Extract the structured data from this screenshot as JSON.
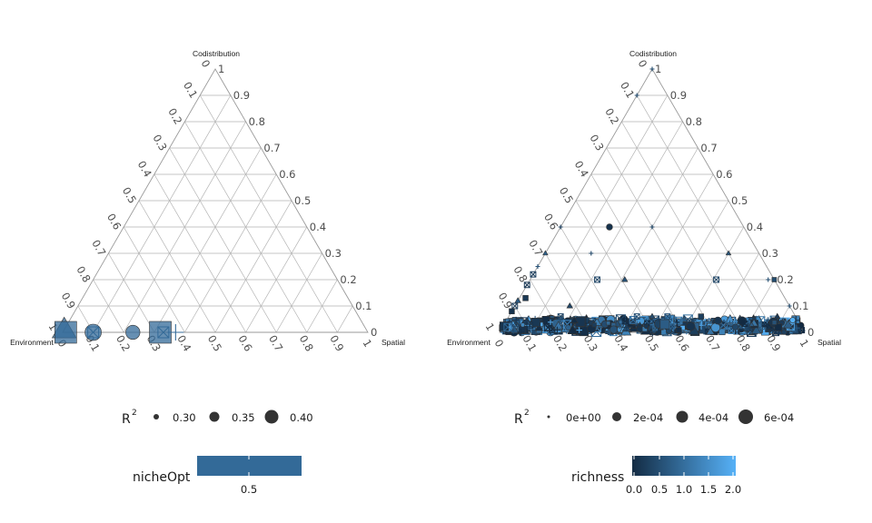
{
  "colors": {
    "grid": "#b3b3b3",
    "low": "#132b43",
    "high": "#56b1f7",
    "nicheOpt_fill": "#336a98",
    "point_stroke": "#333333"
  },
  "chart_data": [
    {
      "type": "scatter",
      "subtype": "ternary",
      "vertex_labels": {
        "top": "Codistribution",
        "left": "Environment",
        "right": "Spatial"
      },
      "ticks": [
        "0",
        "0.1",
        "0.2",
        "0.3",
        "0.4",
        "0.5",
        "0.6",
        "0.7",
        "0.8",
        "0.9",
        "1"
      ],
      "grid": true,
      "legend_position": "bottom",
      "legend_size": {
        "title": "R",
        "title_sup": "2",
        "keys": [
          "0.30",
          "0.35",
          "0.40"
        ]
      },
      "legend_color": {
        "title": "nicheOpt",
        "type": "colorbar",
        "labels": [
          "0.5"
        ]
      },
      "points": [
        {
          "env": 0.99,
          "spa": 0.0,
          "cod": 0.01,
          "shape": "triangle",
          "size": 0.4,
          "value": 0.5
        },
        {
          "env": 0.99,
          "spa": 0.01,
          "cod": 0.0,
          "shape": "square",
          "size": 0.4,
          "value": 0.5
        },
        {
          "env": 0.9,
          "spa": 0.1,
          "cod": 0.0,
          "shape": "circle",
          "size": 0.35,
          "value": 0.5
        },
        {
          "env": 0.9,
          "spa": 0.1,
          "cod": 0.0,
          "shape": "boxx",
          "size": 0.3,
          "value": 0.5
        },
        {
          "env": 0.77,
          "spa": 0.23,
          "cod": 0.0,
          "shape": "circle",
          "size": 0.33,
          "value": 0.5
        },
        {
          "env": 0.68,
          "spa": 0.32,
          "cod": 0.0,
          "shape": "square",
          "size": 0.4,
          "value": 0.5
        },
        {
          "env": 0.67,
          "spa": 0.33,
          "cod": 0.0,
          "shape": "boxx",
          "size": 0.3,
          "value": 0.5
        },
        {
          "env": 0.63,
          "spa": 0.37,
          "cod": 0.0,
          "shape": "plus",
          "size": 0.35,
          "value": 0.5
        }
      ]
    },
    {
      "type": "scatter",
      "subtype": "ternary",
      "vertex_labels": {
        "top": "Codistribution",
        "left": "Environment",
        "right": "Spatial"
      },
      "ticks": [
        "0",
        "0.1",
        "0.2",
        "0.3",
        "0.4",
        "0.5",
        "0.6",
        "0.7",
        "0.8",
        "0.9",
        "1"
      ],
      "grid": true,
      "legend_position": "bottom",
      "legend_size": {
        "title": "R",
        "title_sup": "2",
        "keys": [
          "0e+00",
          "2e-04",
          "4e-04",
          "6e-04"
        ]
      },
      "legend_color": {
        "title": "richness",
        "type": "colorbar",
        "labels": [
          "0.0",
          "0.5",
          "1.0",
          "1.5",
          "2.0"
        ]
      },
      "points": [
        {
          "env": 0.0,
          "spa": 0.0,
          "cod": 1.0,
          "shape": "plus",
          "size": 0.0,
          "value": 0.5
        },
        {
          "env": 0.1,
          "spa": 0.0,
          "cod": 0.9,
          "shape": "plus",
          "size": 0.0,
          "value": 0.5
        },
        {
          "env": 0.6,
          "spa": 0.0,
          "cod": 0.4,
          "shape": "plus",
          "size": 0.0,
          "value": 0.3
        },
        {
          "env": 0.44,
          "spa": 0.16,
          "cod": 0.4,
          "shape": "circle",
          "size": 0.0002,
          "value": 0.1
        },
        {
          "env": 0.3,
          "spa": 0.3,
          "cod": 0.4,
          "shape": "plus",
          "size": 0.0,
          "value": 0.4
        },
        {
          "env": 0.55,
          "spa": 0.15,
          "cod": 0.3,
          "shape": "plus",
          "size": 0.0,
          "value": 0.4
        },
        {
          "env": 0.49,
          "spa": 0.31,
          "cod": 0.2,
          "shape": "triangle",
          "size": 0.0001,
          "value": 0.6
        },
        {
          "env": 0.58,
          "spa": 0.22,
          "cod": 0.2,
          "shape": "boxx",
          "size": 0.0001,
          "value": 0.4
        },
        {
          "env": 0.19,
          "spa": 0.61,
          "cod": 0.2,
          "shape": "boxx",
          "size": 0.0001,
          "value": 0.4
        },
        {
          "env": 0.02,
          "spa": 0.78,
          "cod": 0.2,
          "shape": "plus",
          "size": 0.0,
          "value": 0.5
        },
        {
          "env": 0.1,
          "spa": 0.6,
          "cod": 0.3,
          "shape": "triangle",
          "size": 0.0,
          "value": 0.6
        },
        {
          "env": 0.0,
          "spa": 0.8,
          "cod": 0.2,
          "shape": "square",
          "size": 0.0,
          "value": 0.5
        },
        {
          "env": 0.0,
          "spa": 0.9,
          "cod": 0.1,
          "shape": "plus",
          "size": 0.0,
          "value": 0.5
        },
        {
          "env": 0.7,
          "spa": 0.0,
          "cod": 0.3,
          "shape": "triangle",
          "size": 0.0,
          "value": 0.8
        },
        {
          "env": 0.75,
          "spa": 0.0,
          "cod": 0.25,
          "shape": "plus",
          "size": 0.0,
          "value": 0.6
        },
        {
          "env": 0.78,
          "spa": 0.0,
          "cod": 0.22,
          "shape": "boxx",
          "size": 0.0001,
          "value": 0.3
        },
        {
          "env": 0.82,
          "spa": 0.0,
          "cod": 0.18,
          "shape": "boxx",
          "size": 0.0001,
          "value": 0.2
        },
        {
          "env": 0.85,
          "spa": 0.02,
          "cod": 0.13,
          "shape": "square",
          "size": 0.0001,
          "value": 0.2
        },
        {
          "env": 0.88,
          "spa": 0.0,
          "cod": 0.12,
          "shape": "triangle",
          "size": 0.0001,
          "value": 0.7
        },
        {
          "env": 0.9,
          "spa": 0.0,
          "cod": 0.1,
          "shape": "boxx",
          "size": 0.0001,
          "value": 0.3
        },
        {
          "env": 0.92,
          "spa": 0.0,
          "cod": 0.08,
          "shape": "square",
          "size": 0.0001,
          "value": 0.1
        },
        {
          "env": 0.72,
          "spa": 0.18,
          "cod": 0.1,
          "shape": "triangle",
          "size": 0.0001,
          "value": 0.4
        },
        {
          "env": 0.47,
          "spa": 0.47,
          "cod": 0.06,
          "shape": "triangle",
          "size": 0.0001,
          "value": 0.5
        },
        {
          "env": 0.31,
          "spa": 0.63,
          "cod": 0.06,
          "shape": "square",
          "size": 0.0001,
          "value": 0.3
        },
        {
          "env": 0.77,
          "spa": 0.17,
          "cod": 0.06,
          "shape": "boxx",
          "size": 0.0001,
          "value": 0.4
        },
        {
          "env": 0.52,
          "spa": 0.42,
          "cod": 0.06,
          "shape": "boxx",
          "size": 0.0001,
          "value": 0.5
        },
        {
          "env": 0.42,
          "spa": 0.52,
          "cod": 0.06,
          "shape": "boxx",
          "size": 0.0001,
          "value": 0.6
        },
        {
          "env": 0.06,
          "spa": 0.88,
          "cod": 0.06,
          "shape": "triangle",
          "size": 0.0001,
          "value": 0.2
        }
      ],
      "dense_band": {
        "cod_max": 0.05,
        "env_min": 0.0,
        "env_max": 1.0,
        "count": 650,
        "value_max": 2.0,
        "size_max": 0.0006
      }
    }
  ]
}
